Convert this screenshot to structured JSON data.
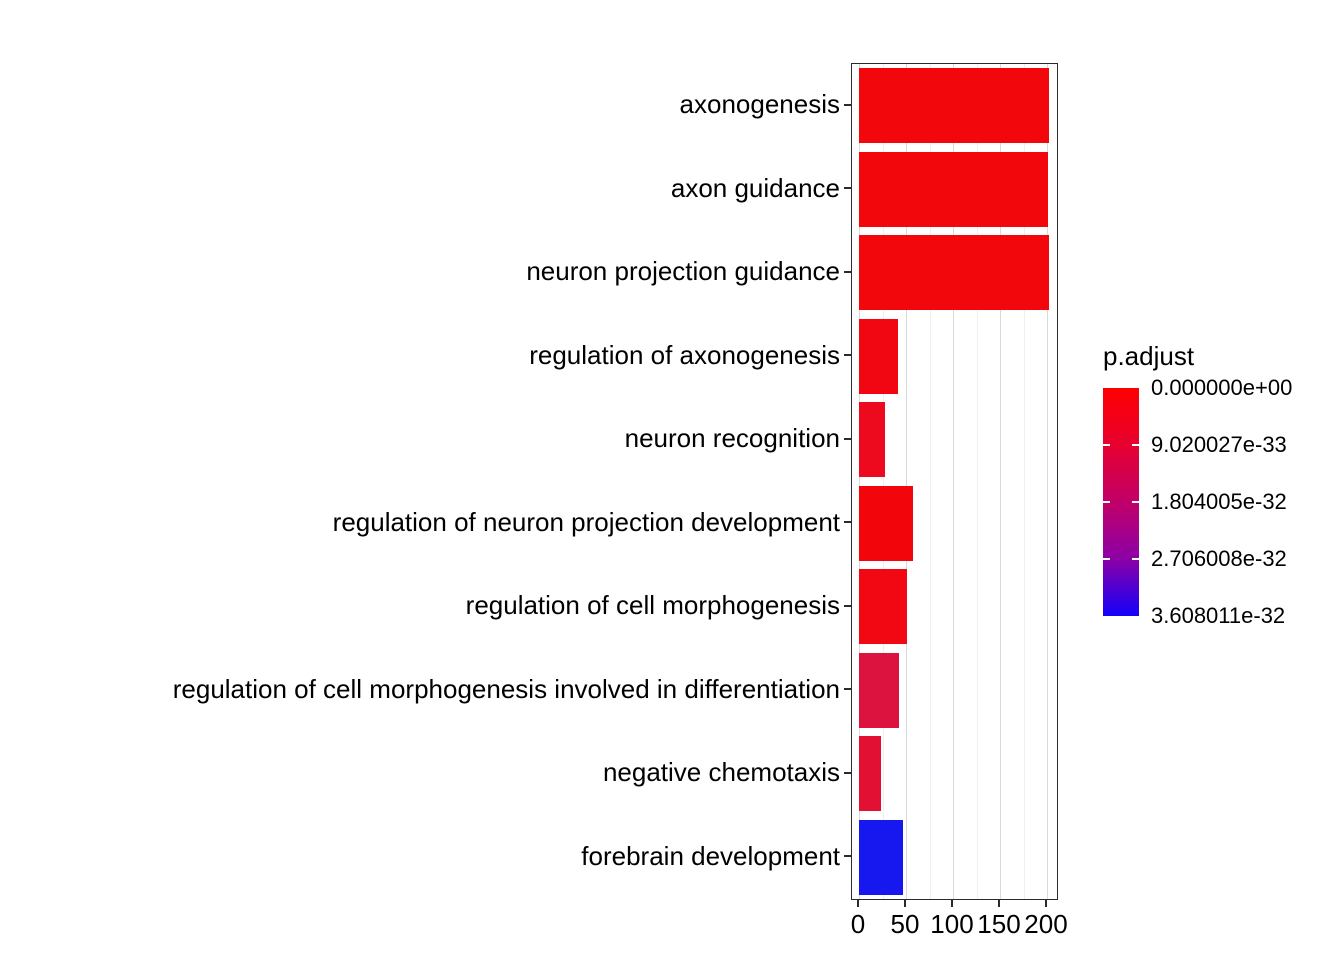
{
  "chart_data": {
    "type": "bar",
    "orientation": "horizontal",
    "title": "",
    "xlabel": "",
    "ylabel": "",
    "categories": [
      "axonogenesis",
      "axon guidance",
      "neuron projection guidance",
      "regulation of axonogenesis",
      "neuron recognition",
      "regulation of neuron projection development",
      "regulation of cell morphogenesis",
      "regulation of cell morphogenesis involved in differentiation",
      "negative chemotaxis",
      "forebrain development"
    ],
    "values": [
      202,
      201,
      202,
      41,
      28,
      57,
      51,
      43,
      23,
      47
    ],
    "bar_colors": [
      "#f2070d",
      "#f2070d",
      "#f2070d",
      "#f10711",
      "#ee0a1e",
      "#f3060b",
      "#f10812",
      "#dc123f",
      "#e21134",
      "#1717f0"
    ],
    "xlim": [
      0,
      212
    ],
    "x_ticks": [
      0,
      50,
      100,
      150,
      200
    ],
    "x_minor_ticks": [
      25,
      75,
      125,
      175
    ],
    "grid": "vertical major and minor gridlines, white panel, black border",
    "legend": {
      "title": "p.adjust",
      "position": "right",
      "labels": [
        "0.000000e+00",
        "9.020027e-33",
        "1.804005e-32",
        "2.706008e-32",
        "3.608011e-32"
      ],
      "gradient_stops": [
        "#ff0000",
        "#e7002f",
        "#c10069",
        "#8c00a6",
        "#1400fa"
      ]
    },
    "style": {
      "panel_border": "#2b2b2b",
      "grid_major": "#d9d9d9",
      "grid_minor": "#efefef",
      "text_color": "#000000",
      "background": "#ffffff"
    }
  }
}
